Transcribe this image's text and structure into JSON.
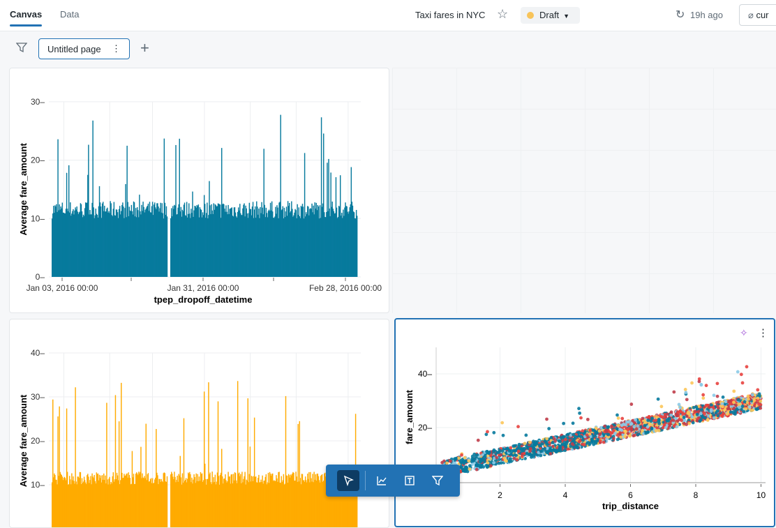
{
  "header": {
    "tabs": [
      {
        "label": "Canvas",
        "active": true
      },
      {
        "label": "Data",
        "active": false
      }
    ],
    "title": "Taxi fares in NYC",
    "status": "Draft",
    "status_color": "#f8c45a",
    "refresh": "19h ago",
    "right_button": "cur"
  },
  "toolbar": {
    "page_tab": "Untitled page"
  },
  "accent": "#2272b4",
  "chart_data": [
    {
      "type": "bar",
      "xlabel": "tpep_dropoff_datetime",
      "ylabel": "Average fare_amount",
      "color": "#077a9d",
      "x_ticks": [
        "Jan 03, 2016 00:00",
        "Jan 31, 2016 00:00",
        "Feb 28, 2016 00:00"
      ],
      "y_ticks": [
        0,
        10,
        20,
        30
      ],
      "ylim": [
        0,
        30
      ],
      "xlim": [
        "2016-01-01",
        "2016-03-01"
      ],
      "grid": true
    },
    {
      "type": "bar",
      "xlabel": "",
      "ylabel": "Average fare_amount",
      "color": "#ffab00",
      "y_ticks": [
        10,
        20,
        30,
        40
      ],
      "ylim": [
        0,
        40
      ],
      "grid": true
    },
    {
      "type": "scatter",
      "xlabel": "trip_distance",
      "ylabel": "fare_amount",
      "x_ticks": [
        2,
        4,
        6,
        8,
        10
      ],
      "y_ticks": [
        20,
        40
      ],
      "xlim": [
        0,
        10
      ],
      "ylim": [
        0,
        48
      ],
      "series_colors": [
        "#e8423f",
        "#077a9d",
        "#fcc65a",
        "#8bcae7",
        "#c03d4a"
      ],
      "grid": true
    }
  ]
}
